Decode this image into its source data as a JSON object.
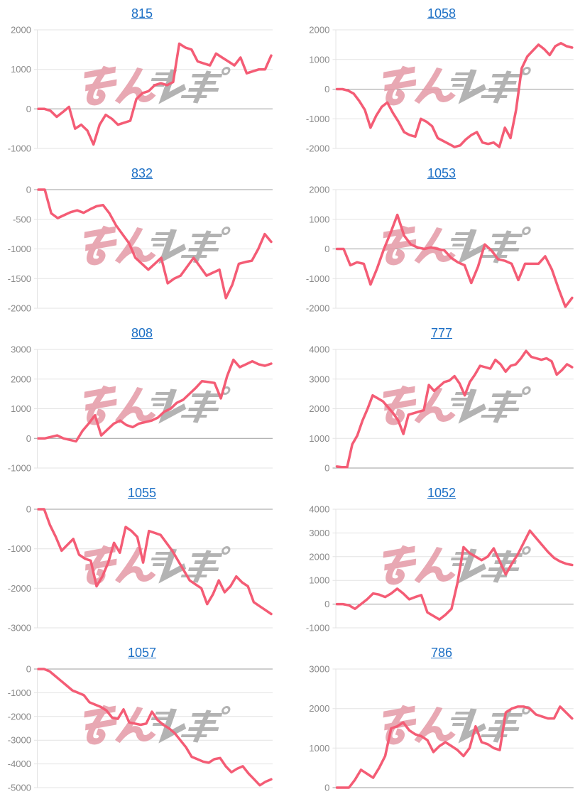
{
  "page": {
    "background": "#ffffff"
  },
  "styles": {
    "line_color": "#f45c75",
    "title_color": "#1c6fc5",
    "tick_label_color": "#8a8a8a",
    "grid_color": "#e3e3e3",
    "zero_line_color": "#9c9c9c"
  },
  "watermark": {
    "text_pink": "みん",
    "text_gray": "レポ",
    "pink_color": "#e59aa6",
    "gray_color": "#ababab"
  },
  "chart_data": [
    {
      "type": "line",
      "title": "815",
      "xlabel": "",
      "ylabel": "",
      "ylim": [
        -1000,
        2000
      ],
      "yticks": [
        "2000",
        "1000",
        "0",
        "-1000"
      ],
      "values": [
        0,
        0,
        -50,
        -200,
        -80,
        50,
        -500,
        -400,
        -550,
        -900,
        -400,
        -150,
        -250,
        -400,
        -350,
        -300,
        250,
        400,
        450,
        600,
        650,
        600,
        680,
        1650,
        1550,
        1500,
        1200,
        1150,
        1100,
        1400,
        1300,
        1200,
        1100,
        1300,
        900,
        950,
        1000,
        1000,
        1350
      ]
    },
    {
      "type": "line",
      "title": "1058",
      "xlabel": "",
      "ylabel": "",
      "ylim": [
        -2000,
        2000
      ],
      "yticks": [
        "2000",
        "1000",
        "0",
        "-1000",
        "-2000"
      ],
      "values": [
        0,
        0,
        -50,
        -150,
        -400,
        -700,
        -1300,
        -900,
        -600,
        -450,
        -800,
        -1100,
        -1450,
        -1550,
        -1600,
        -1000,
        -1100,
        -1250,
        -1650,
        -1750,
        -1850,
        -1950,
        -1900,
        -1700,
        -1550,
        -1450,
        -1800,
        -1850,
        -1800,
        -1950,
        -1300,
        -1650,
        -700,
        700,
        1100,
        1300,
        1500,
        1350,
        1150,
        1450,
        1550,
        1450,
        1400
      ]
    },
    {
      "type": "line",
      "title": "832",
      "xlabel": "",
      "ylabel": "",
      "ylim": [
        -2000,
        0
      ],
      "yticks": [
        "0",
        "-500",
        "-1000",
        "-1500",
        "-2000"
      ],
      "values": [
        0,
        0,
        -400,
        -480,
        -430,
        -380,
        -350,
        -390,
        -330,
        -280,
        -260,
        -400,
        -600,
        -750,
        -900,
        -1150,
        -1250,
        -1350,
        -1250,
        -1150,
        -1580,
        -1500,
        -1450,
        -1300,
        -1150,
        -1300,
        -1450,
        -1400,
        -1350,
        -1830,
        -1600,
        -1250,
        -1220,
        -1200,
        -1000,
        -750,
        -880
      ]
    },
    {
      "type": "line",
      "title": "1053",
      "xlabel": "",
      "ylabel": "",
      "ylim": [
        -2000,
        2000
      ],
      "yticks": [
        "2000",
        "1000",
        "0",
        "-1000",
        "-2000"
      ],
      "values": [
        0,
        0,
        -550,
        -450,
        -500,
        -1200,
        -650,
        0,
        550,
        1150,
        450,
        150,
        50,
        0,
        50,
        0,
        -50,
        -300,
        -450,
        -550,
        -1150,
        -600,
        150,
        -50,
        -350,
        -400,
        -500,
        -1050,
        -500,
        -500,
        -500,
        -250,
        -700,
        -1350,
        -1950,
        -1650
      ]
    },
    {
      "type": "line",
      "title": "808",
      "xlabel": "",
      "ylabel": "",
      "ylim": [
        -1000,
        3000
      ],
      "yticks": [
        "3000",
        "2000",
        "1000",
        "0",
        "-1000"
      ],
      "values": [
        0,
        0,
        50,
        100,
        0,
        -50,
        -100,
        250,
        500,
        780,
        100,
        300,
        500,
        600,
        450,
        380,
        500,
        550,
        600,
        700,
        900,
        1000,
        1200,
        1300,
        1500,
        1700,
        1930,
        1900,
        1870,
        1350,
        2100,
        2650,
        2400,
        2500,
        2600,
        2500,
        2450,
        2520
      ]
    },
    {
      "type": "line",
      "title": "777",
      "xlabel": "",
      "ylabel": "",
      "ylim": [
        0,
        4000
      ],
      "yticks": [
        "4000",
        "3000",
        "2000",
        "1000",
        "0"
      ],
      "values": [
        50,
        30,
        30,
        800,
        1100,
        1600,
        2000,
        2450,
        2350,
        2250,
        2050,
        1850,
        1600,
        1150,
        1800,
        1850,
        1900,
        1950,
        2800,
        2600,
        2750,
        2900,
        2950,
        3100,
        2850,
        2450,
        2900,
        3150,
        3450,
        3400,
        3350,
        3650,
        3500,
        3250,
        3450,
        3500,
        3700,
        3950,
        3750,
        3700,
        3650,
        3700,
        3600,
        3150,
        3300,
        3500,
        3400
      ]
    },
    {
      "type": "line",
      "title": "1055",
      "xlabel": "",
      "ylabel": "",
      "ylim": [
        -3000,
        0
      ],
      "yticks": [
        "0",
        "-1000",
        "-2000",
        "-3000"
      ],
      "values": [
        0,
        0,
        -400,
        -700,
        -1050,
        -900,
        -750,
        -1150,
        -1250,
        -1300,
        -1950,
        -1700,
        -1350,
        -850,
        -1100,
        -450,
        -550,
        -700,
        -1350,
        -550,
        -600,
        -650,
        -850,
        -1050,
        -1300,
        -1550,
        -1800,
        -1900,
        -2000,
        -2400,
        -2150,
        -1800,
        -2100,
        -1950,
        -1700,
        -1850,
        -1950,
        -2350,
        -2450,
        -2550,
        -2650
      ]
    },
    {
      "type": "line",
      "title": "1052",
      "xlabel": "",
      "ylabel": "",
      "ylim": [
        -1000,
        4000
      ],
      "yticks": [
        "4000",
        "3000",
        "2000",
        "1000",
        "0",
        "-1000"
      ],
      "values": [
        0,
        0,
        -50,
        -200,
        0,
        200,
        450,
        400,
        300,
        450,
        650,
        450,
        200,
        300,
        380,
        -350,
        -500,
        -650,
        -450,
        -200,
        900,
        2400,
        2150,
        2000,
        1850,
        2000,
        2350,
        1800,
        1250,
        1700,
        2100,
        2600,
        3100,
        2800,
        2500,
        2200,
        1950,
        1800,
        1700,
        1650
      ]
    },
    {
      "type": "line",
      "title": "1057",
      "xlabel": "",
      "ylabel": "",
      "ylim": [
        -5000,
        0
      ],
      "yticks": [
        "0",
        "-1000",
        "-2000",
        "-3000",
        "-4000",
        "-5000"
      ],
      "values": [
        0,
        0,
        -100,
        -300,
        -500,
        -700,
        -900,
        -1000,
        -1100,
        -1400,
        -1500,
        -1600,
        -1750,
        -2050,
        -2100,
        -1700,
        -2250,
        -2300,
        -2350,
        -2300,
        -1800,
        -2150,
        -2350,
        -2500,
        -2700,
        -3000,
        -3300,
        -3700,
        -3800,
        -3900,
        -3950,
        -3800,
        -3750,
        -4100,
        -4350,
        -4200,
        -4100,
        -4400,
        -4650,
        -4900,
        -4750,
        -4650
      ]
    },
    {
      "type": "line",
      "title": "786",
      "xlabel": "",
      "ylabel": "",
      "ylim": [
        0,
        3000
      ],
      "yticks": [
        "3000",
        "2000",
        "1000",
        "0"
      ],
      "values": [
        0,
        0,
        0,
        200,
        450,
        350,
        250,
        500,
        800,
        1500,
        1550,
        1650,
        1450,
        1350,
        1300,
        1200,
        900,
        1050,
        1150,
        1050,
        950,
        800,
        1000,
        1550,
        1150,
        1100,
        1000,
        950,
        1900,
        2000,
        2050,
        2050,
        2000,
        1850,
        1800,
        1750,
        1750,
        2050,
        1900,
        1750
      ]
    }
  ]
}
